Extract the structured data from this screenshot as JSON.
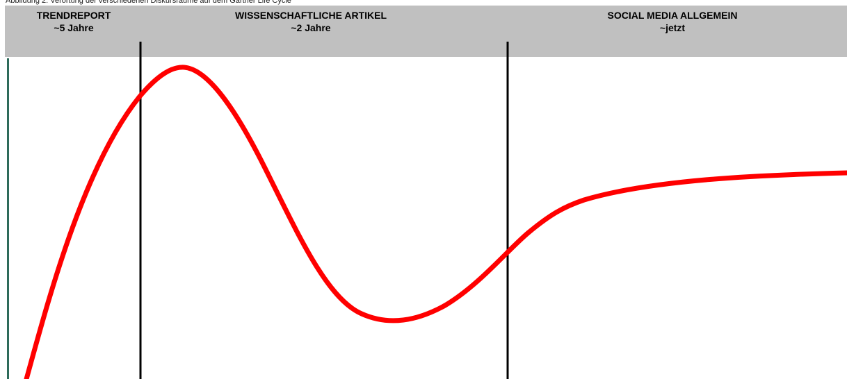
{
  "caption": "Abbildung 2: Verortung der verschiedenen Diskursräume auf dem Gartner Life Cycle",
  "phases": [
    {
      "name": "TRENDREPORT",
      "time": "~5 Jahre"
    },
    {
      "name": "WISSENSCHAFTLICHE ARTIKEL",
      "time": "~2 Jahre"
    },
    {
      "name": "SOCIAL MEDIA ALLGEMEIN",
      "time": "~jetzt"
    }
  ],
  "colors": {
    "curve": "#ff0000",
    "header_band": "#c0c0c0",
    "divider": "#000000",
    "axis": "#2e6b5a"
  }
}
